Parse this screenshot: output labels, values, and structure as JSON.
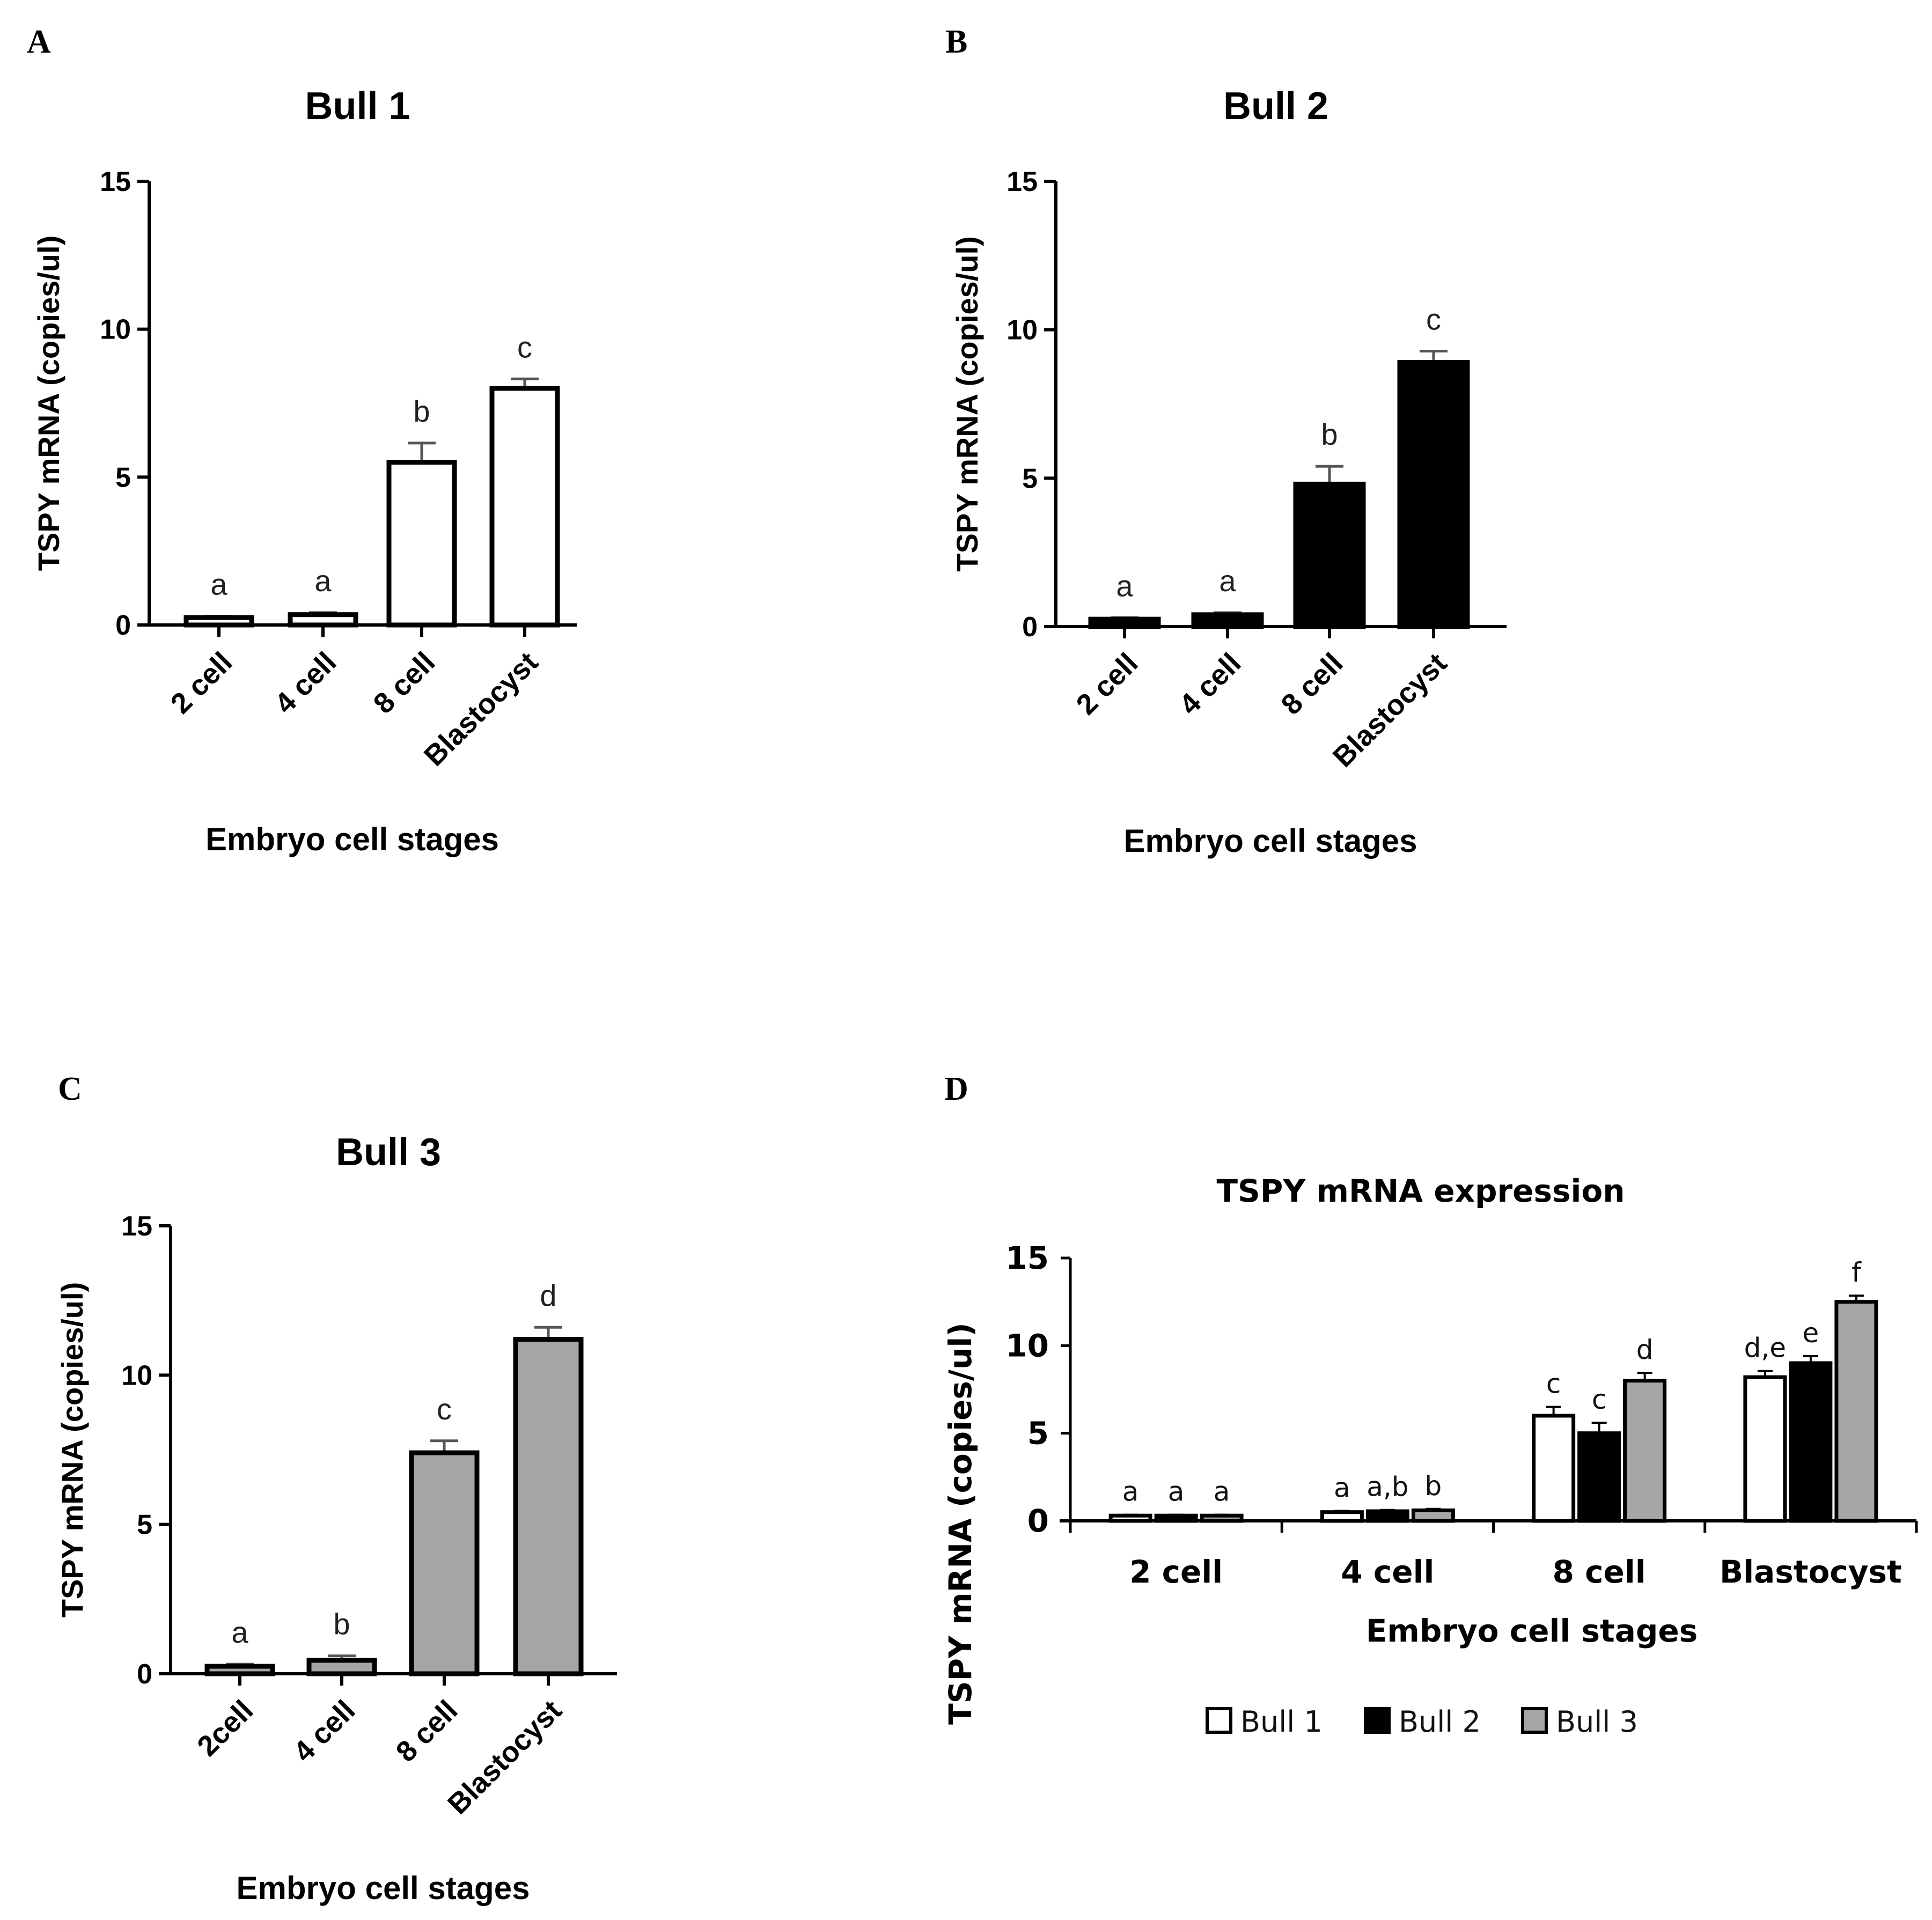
{
  "colors": {
    "bull1": "#ffffff",
    "bull2": "#000000",
    "bull3": "#a5a5a5",
    "bull3_d": "#a6a6a6",
    "stroke": "#000000",
    "error": "#555555"
  },
  "chart_data": [
    {
      "panel": "A",
      "type": "bar",
      "title": "Bull 1",
      "xlabel": "Embryo cell stages",
      "ylabel": "TSPY mRNA (copies/ul)",
      "ylim": [
        0,
        15
      ],
      "yticks": [
        "0",
        "5",
        "10",
        "15"
      ],
      "categories": [
        "2 cell",
        "4 cell",
        "8 cell",
        "Blastocyst"
      ],
      "values": [
        0.25,
        0.35,
        5.5,
        8.0
      ],
      "errors": [
        0.05,
        0.07,
        0.65,
        0.32
      ],
      "letters": [
        "a",
        "a",
        "b",
        "c"
      ],
      "fill": "bull1"
    },
    {
      "panel": "B",
      "type": "bar",
      "title": "Bull 2",
      "xlabel": "Embryo cell stages",
      "ylabel": "TSPY mRNA (copies/ul)",
      "ylim": [
        0,
        15
      ],
      "yticks": [
        "0",
        "5",
        "10",
        "15"
      ],
      "categories": [
        "2 cell",
        "4 cell",
        "8 cell",
        "Blastocyst"
      ],
      "values": [
        0.25,
        0.4,
        4.8,
        8.9
      ],
      "errors": [
        0.05,
        0.07,
        0.6,
        0.38
      ],
      "letters": [
        "a",
        "a",
        "b",
        "c"
      ],
      "fill": "bull2"
    },
    {
      "panel": "C",
      "type": "bar",
      "title": "Bull 3",
      "xlabel": "Embryo cell stages",
      "ylabel": "TSPY mRNA (copies/ul)",
      "ylim": [
        0,
        15
      ],
      "yticks": [
        "0",
        "5",
        "10",
        "15"
      ],
      "categories": [
        "2cell",
        "4 cell",
        "8 cell",
        "Blastocyst"
      ],
      "values": [
        0.25,
        0.45,
        7.4,
        11.2
      ],
      "errors": [
        0.07,
        0.15,
        0.4,
        0.4
      ],
      "letters": [
        "a",
        "b",
        "c",
        "d"
      ],
      "fill": "bull3"
    },
    {
      "panel": "D",
      "type": "bar",
      "title": "TSPY mRNA expression",
      "xlabel": "Embryo cell stages",
      "ylabel": "TSPY mRNA (copies/ul)",
      "ylim": [
        0,
        15
      ],
      "yticks": [
        "0",
        "5",
        "10",
        "15"
      ],
      "categories": [
        "2 cell",
        "4 cell",
        "8 cell",
        "Blastocyst"
      ],
      "series": [
        {
          "name": "Bull 1",
          "fill": "bull1",
          "values": [
            0.3,
            0.5,
            6.0,
            8.2
          ],
          "errors": [
            0.05,
            0.07,
            0.5,
            0.35
          ],
          "letters": [
            "a",
            "a",
            "c",
            "d,e"
          ]
        },
        {
          "name": "Bull 2",
          "fill": "bull2",
          "values": [
            0.3,
            0.55,
            5.0,
            9.0
          ],
          "errors": [
            0.05,
            0.07,
            0.6,
            0.4
          ],
          "letters": [
            "a",
            "a,b",
            "c",
            "e"
          ]
        },
        {
          "name": "Bull 3",
          "fill": "bull3_d",
          "values": [
            0.3,
            0.6,
            8.0,
            12.5
          ],
          "errors": [
            0.05,
            0.08,
            0.45,
            0.35
          ],
          "letters": [
            "a",
            "b",
            "d",
            "f"
          ]
        }
      ],
      "legend": [
        "Bull 1",
        "Bull 2",
        "Bull 3"
      ]
    }
  ]
}
